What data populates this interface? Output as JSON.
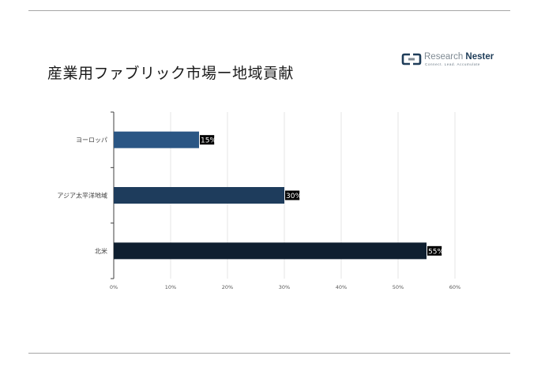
{
  "title": "産業用ファブリック市場ー地域貢献",
  "logo": {
    "name_part1": "Research",
    "name_part2": "Nester",
    "tagline": "Connect. Lead. Accumulate",
    "colors": {
      "dark": "#1f3d59",
      "light": "#7f8a93"
    }
  },
  "chart_data": {
    "type": "bar",
    "orientation": "horizontal",
    "categories": [
      "ヨーロッパ",
      "アジア太平洋地域",
      "北米"
    ],
    "values": [
      15,
      30,
      55
    ],
    "data_labels": [
      "15%",
      "30%",
      "55%"
    ],
    "bar_colors": [
      "#2a5684",
      "#1e3c5c",
      "#0f1f30"
    ],
    "xlim": [
      0,
      60
    ],
    "xticks": [
      0,
      10,
      20,
      30,
      40,
      50,
      60
    ],
    "xtick_labels": [
      "0%",
      "10%",
      "20%",
      "30%",
      "40%",
      "50%",
      "60%"
    ],
    "grid": "vertical",
    "grid_color": "#e6e6e6",
    "legend": "none"
  }
}
